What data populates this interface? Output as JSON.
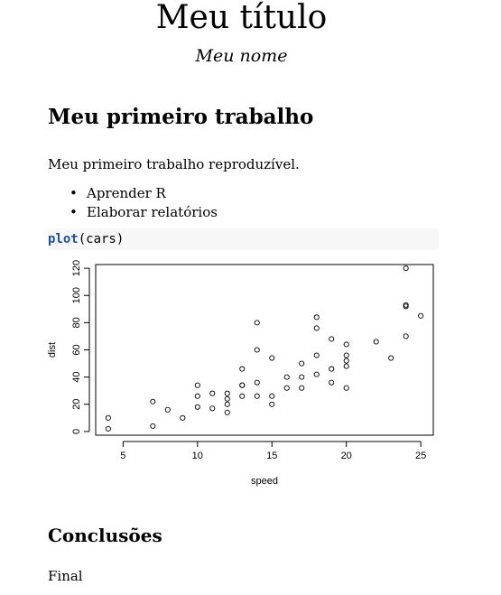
{
  "document": {
    "title": "Meu título",
    "author": "Meu nome",
    "section1_heading": "Meu primeiro trabalho",
    "paragraph": "Meu primeiro trabalho reproduzível.",
    "bullets": [
      "Aprender R",
      "Elaborar relatórios"
    ],
    "code": {
      "function": "plot",
      "args": "(cars)"
    },
    "section2_heading": "Conclusões",
    "final_text": "Final"
  },
  "chart_data": {
    "type": "scatter",
    "xlabel": "speed",
    "ylabel": "dist",
    "xlim": [
      3.16,
      25.84
    ],
    "ylim": [
      -2.72,
      122.72
    ],
    "xticks": [
      5,
      10,
      15,
      20,
      25
    ],
    "yticks": [
      0,
      20,
      40,
      60,
      80,
      100,
      120
    ],
    "grid": false,
    "points": [
      [
        4,
        2
      ],
      [
        4,
        10
      ],
      [
        7,
        4
      ],
      [
        7,
        22
      ],
      [
        8,
        16
      ],
      [
        9,
        10
      ],
      [
        10,
        18
      ],
      [
        10,
        26
      ],
      [
        10,
        34
      ],
      [
        11,
        17
      ],
      [
        11,
        28
      ],
      [
        12,
        14
      ],
      [
        12,
        20
      ],
      [
        12,
        24
      ],
      [
        12,
        28
      ],
      [
        13,
        26
      ],
      [
        13,
        34
      ],
      [
        13,
        34
      ],
      [
        13,
        46
      ],
      [
        14,
        26
      ],
      [
        14,
        36
      ],
      [
        14,
        60
      ],
      [
        14,
        80
      ],
      [
        15,
        20
      ],
      [
        15,
        26
      ],
      [
        15,
        54
      ],
      [
        16,
        32
      ],
      [
        16,
        40
      ],
      [
        17,
        32
      ],
      [
        17,
        40
      ],
      [
        17,
        50
      ],
      [
        18,
        42
      ],
      [
        18,
        56
      ],
      [
        18,
        76
      ],
      [
        18,
        84
      ],
      [
        19,
        36
      ],
      [
        19,
        46
      ],
      [
        19,
        68
      ],
      [
        20,
        32
      ],
      [
        20,
        48
      ],
      [
        20,
        52
      ],
      [
        20,
        56
      ],
      [
        20,
        64
      ],
      [
        22,
        66
      ],
      [
        23,
        54
      ],
      [
        24,
        70
      ],
      [
        24,
        92
      ],
      [
        24,
        93
      ],
      [
        24,
        120
      ],
      [
        25,
        85
      ]
    ]
  }
}
